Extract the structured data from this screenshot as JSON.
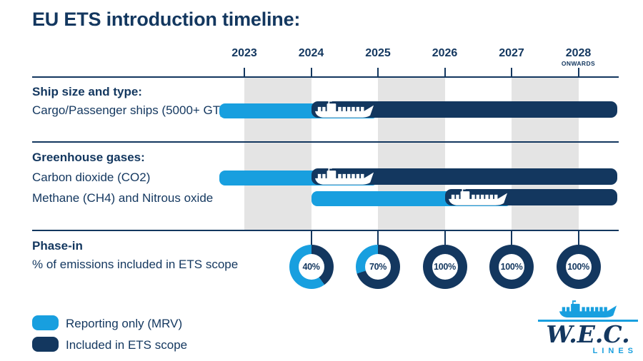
{
  "title": "EU ETS introduction timeline:",
  "colors": {
    "navy": "#13375F",
    "blue": "#189FDF",
    "band_gray": "#E4E4E4",
    "white": "#FFFFFF"
  },
  "timeline": {
    "years": [
      "2023",
      "2024",
      "2025",
      "2026",
      "2027",
      "2028"
    ],
    "last_year_note": "ONWARDS"
  },
  "sections": {
    "ship": {
      "heading": "Ship size and type:"
    },
    "gases": {
      "heading": "Greenhouse gases:"
    }
  },
  "rows": [
    {
      "label": "Cargo/Passenger ships (5000+ GT)",
      "mrv_from": 2022.63,
      "mrv_to": 2025,
      "ets_from": 2024,
      "ets_to": 2028.58
    },
    {
      "label": "Carbon dioxide (CO2)",
      "mrv_from": 2022.63,
      "mrv_to": 2025,
      "ets_from": 2024,
      "ets_to": 2028.58
    },
    {
      "label": "Methane (CH4) and Nitrous oxide",
      "mrv_from": 2024,
      "mrv_to": 2027,
      "ets_from": 2026,
      "ets_to": 2028.58
    }
  ],
  "phase_in": {
    "heading": "Phase-in",
    "subheading": "% of emissions included in ETS scope",
    "items": [
      {
        "year": "2024",
        "value": 40,
        "label": "40%"
      },
      {
        "year": "2025",
        "value": 70,
        "label": "70%"
      },
      {
        "year": "2026",
        "value": 100,
        "label": "100%"
      },
      {
        "year": "2027",
        "value": 100,
        "label": "100%"
      },
      {
        "year": "2028",
        "value": 100,
        "label": "100%"
      }
    ]
  },
  "legend": {
    "items": [
      {
        "swatch": "blue",
        "label": "Reporting only (MRV)"
      },
      {
        "swatch": "navy",
        "label": "Included in ETS scope"
      }
    ]
  },
  "logo": {
    "brand": "W.E.C.",
    "sub": "LINES"
  },
  "chart_data": {
    "type": "bar",
    "subtype": "gantt-timeline",
    "title": "EU ETS introduction timeline:",
    "x_categories": [
      "2023",
      "2024",
      "2025",
      "2026",
      "2027",
      "2028 ONWARDS"
    ],
    "shaded_year_bands": [
      "2023-2024",
      "2025-2026",
      "2027-2028"
    ],
    "groups": [
      {
        "group": "Ship size and type:",
        "rows": [
          {
            "name": "Cargo/Passenger ships (5000+ GT)",
            "segments": [
              {
                "series": "Reporting only (MRV)",
                "start": "before 2023",
                "end": "2025"
              },
              {
                "series": "Included in ETS scope",
                "start": "2024",
                "end": "2028 onwards"
              }
            ]
          }
        ]
      },
      {
        "group": "Greenhouse gases:",
        "rows": [
          {
            "name": "Carbon dioxide (CO2)",
            "segments": [
              {
                "series": "Reporting only (MRV)",
                "start": "before 2023",
                "end": "2025"
              },
              {
                "series": "Included in ETS scope",
                "start": "2024",
                "end": "2028 onwards"
              }
            ]
          },
          {
            "name": "Methane (CH4) and Nitrous oxide",
            "segments": [
              {
                "series": "Reporting only (MRV)",
                "start": "2024",
                "end": "2027"
              },
              {
                "series": "Included in ETS scope",
                "start": "2026",
                "end": "2028 onwards"
              }
            ]
          }
        ]
      }
    ],
    "phase_in": {
      "label": "Phase-in",
      "ylabel": "% of emissions included in ETS scope",
      "years": [
        "2024",
        "2025",
        "2026",
        "2027",
        "2028"
      ],
      "values": [
        40,
        70,
        100,
        100,
        100
      ],
      "marker": "donut"
    },
    "legend": [
      "Reporting only (MRV)",
      "Included in ETS scope"
    ],
    "legend_position": "bottom-left"
  }
}
